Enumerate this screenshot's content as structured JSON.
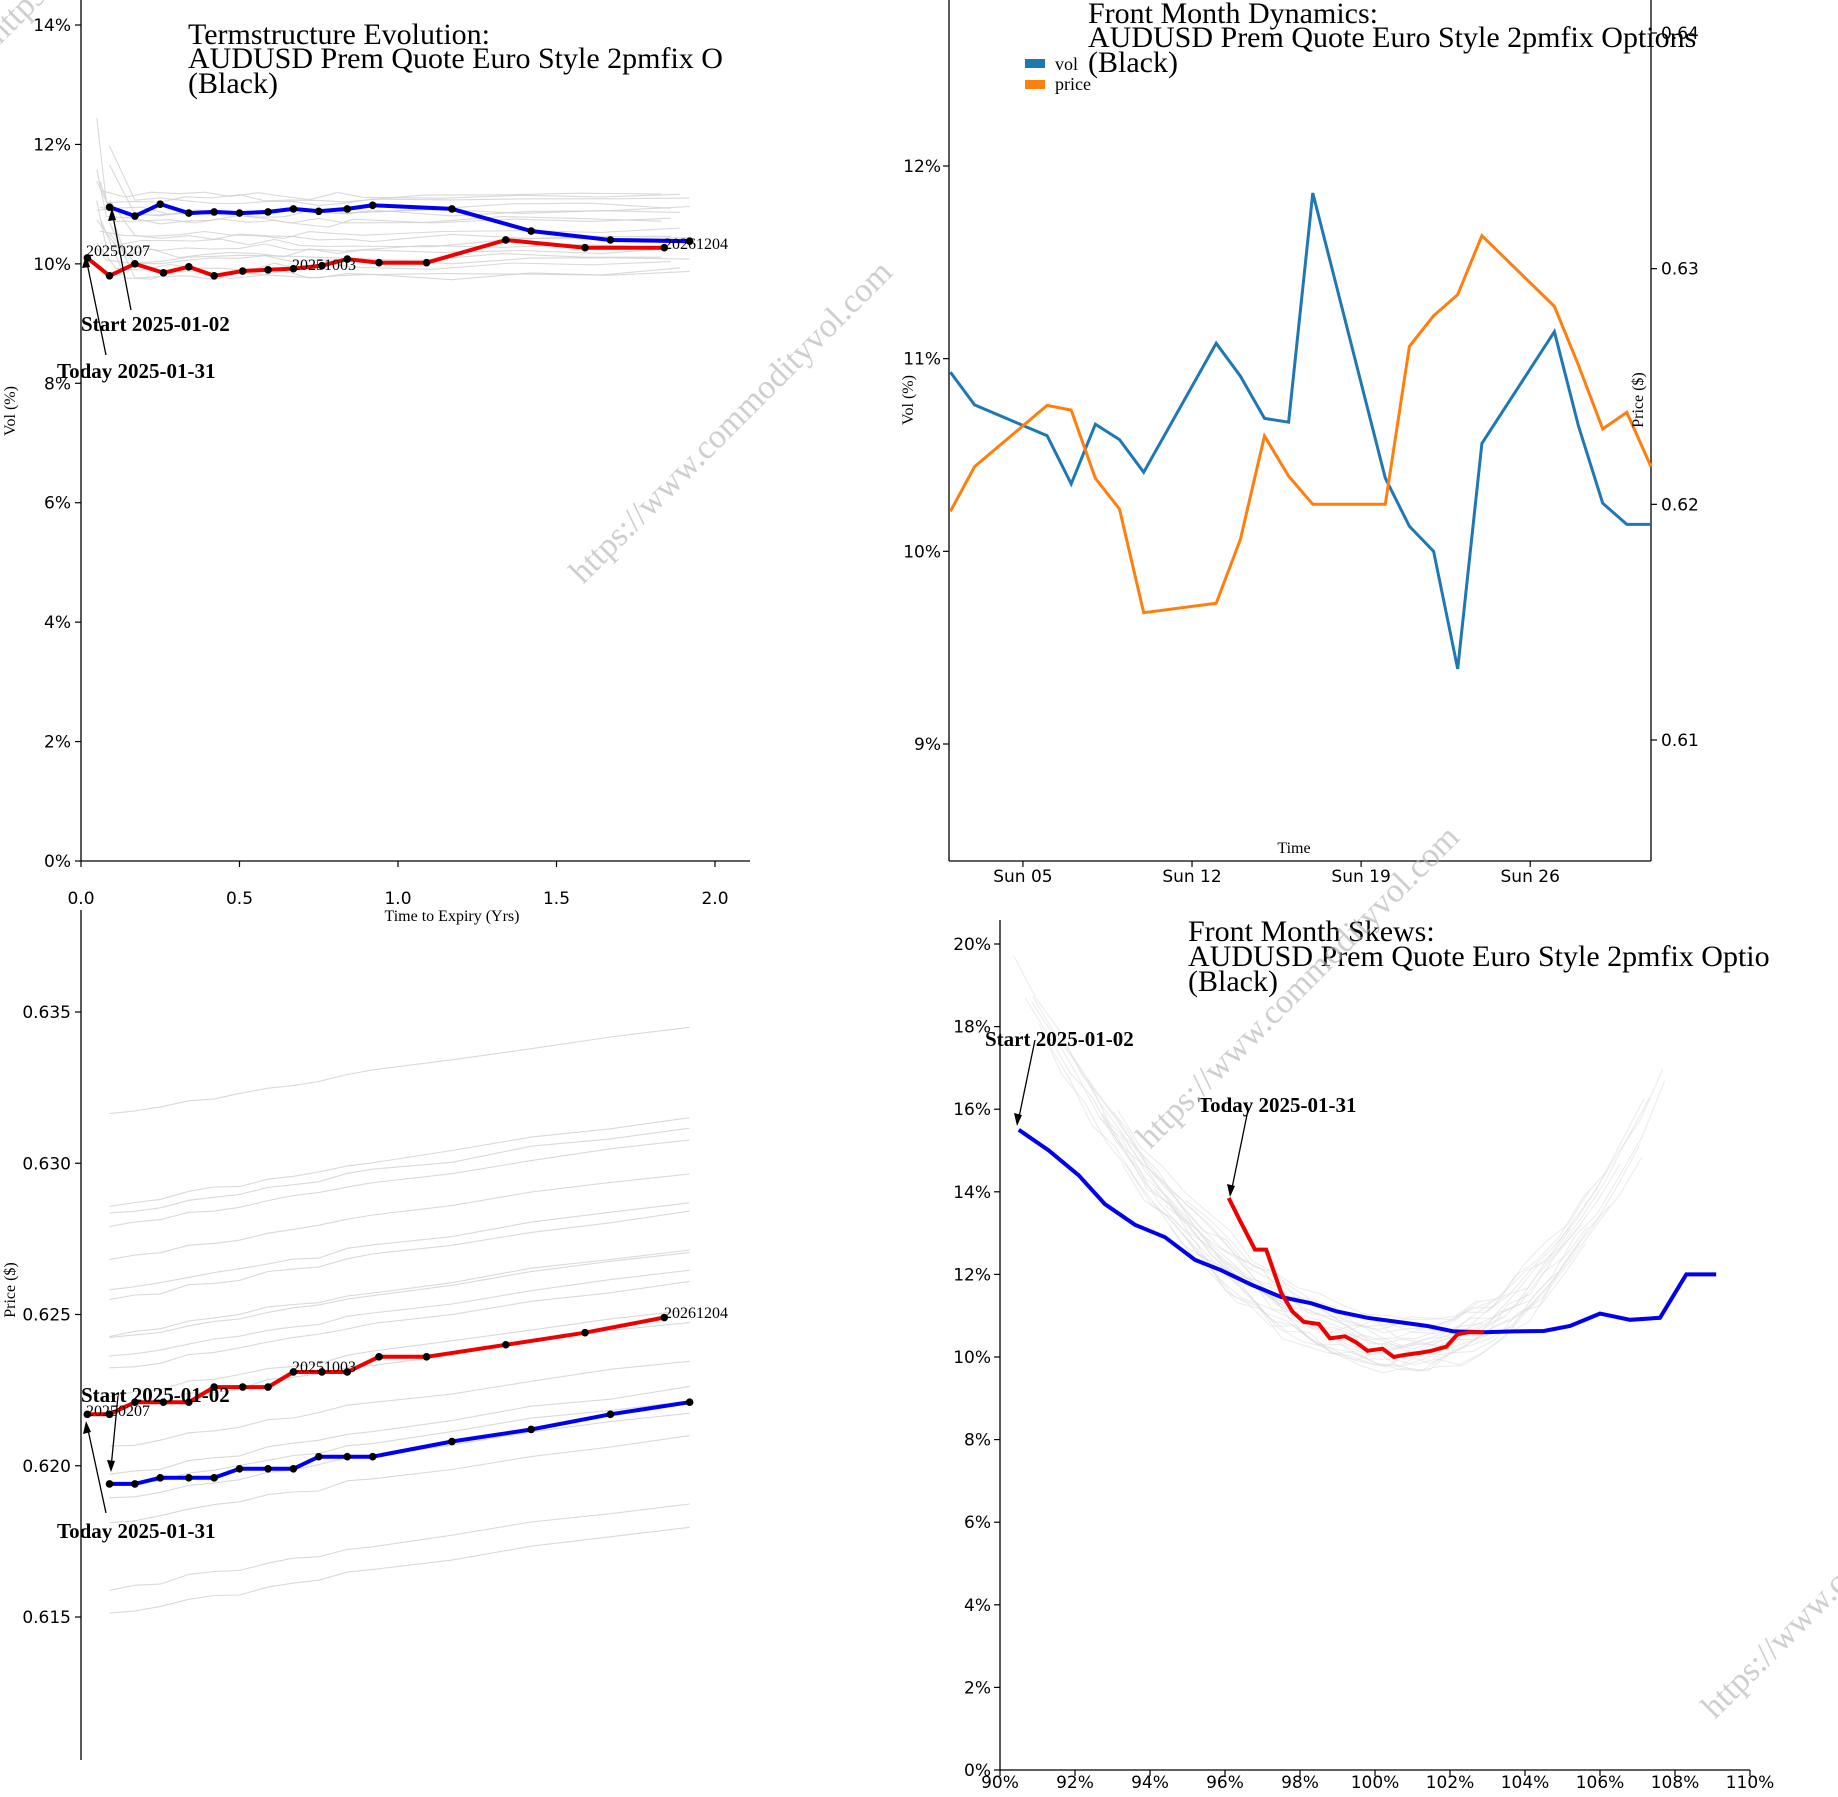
{
  "watermark": "https://www.commodityvol.com",
  "charts": {
    "term_vol": {
      "title_lines": [
        "Termstructure Evolution:",
        "AUDUSD Prem Quote Euro Style 2pmfix O",
        "(Black)"
      ],
      "xlabel": "Time to Expiry (Yrs)",
      "ylabel": "Vol (%)",
      "x_ticks": [
        "0.0",
        "0.5",
        "1.0",
        "1.5",
        "2.0"
      ],
      "y_ticks": [
        "0%",
        "2%",
        "4%",
        "6%",
        "8%",
        "10%",
        "12%",
        "14%"
      ],
      "annotations": {
        "start": "Start 2025-01-02",
        "today": "Today 2025-01-31"
      },
      "point_labels": [
        "20250207",
        "20251003",
        "20261204"
      ]
    },
    "term_price": {
      "ylabel": "Price ($)",
      "y_ticks": [
        "0.615",
        "0.620",
        "0.625",
        "0.630",
        "0.635"
      ],
      "annotations": {
        "start": "Start 2025-01-02",
        "today": "Today 2025-01-31"
      },
      "point_labels": [
        "20250207",
        "20251003",
        "20261204"
      ]
    },
    "dynamics": {
      "title_lines": [
        "Front Month Dynamics:",
        "AUDUSD Prem Quote Euro Style 2pmfix Options",
        "(Black)"
      ],
      "xlabel": "Time",
      "ylabel_left": "Vol (%)",
      "ylabel_right": "Price ($)",
      "x_ticks": [
        "Sun 05",
        "Sun 12",
        "Sun 19",
        "Sun 26"
      ],
      "y_ticks_left": [
        "9%",
        "10%",
        "11%",
        "12%"
      ],
      "y_ticks_right": [
        "0.61",
        "0.62",
        "0.63",
        "0.64"
      ],
      "legend": [
        "vol",
        "price"
      ]
    },
    "skew": {
      "title_lines": [
        "Front Month Skews:",
        "AUDUSD Prem Quote Euro Style 2pmfix Optio",
        "(Black)"
      ],
      "x_ticks": [
        "90%",
        "92%",
        "94%",
        "96%",
        "98%",
        "100%",
        "102%",
        "104%",
        "106%",
        "108%",
        "110%"
      ],
      "y_ticks": [
        "0%",
        "2%",
        "4%",
        "6%",
        "8%",
        "10%",
        "12%",
        "14%",
        "16%",
        "18%",
        "20%"
      ],
      "annotations": {
        "start": "Start 2025-01-02",
        "today": "Today 2025-01-31"
      }
    }
  },
  "colors": {
    "start": "#0000ee",
    "today": "#ee0000",
    "vol": "#1f77b4",
    "price": "#ff7f0e",
    "history": "#cccccc"
  },
  "chart_data": [
    {
      "type": "line",
      "title": "Termstructure Evolution: AUDUSD Prem Quote Euro Style 2pmfix O (Black)",
      "xlabel": "Time to Expiry (Yrs)",
      "ylabel": "Vol (%)",
      "xlim": [
        0,
        2.1
      ],
      "ylim": [
        0,
        14
      ],
      "series": [
        {
          "name": "Start 2025-01-02",
          "x": [
            0.09,
            0.17,
            0.25,
            0.34,
            0.42,
            0.5,
            0.59,
            0.67,
            0.75,
            0.84,
            0.92,
            1.17,
            1.42,
            1.67,
            1.92
          ],
          "values": [
            10.95,
            10.8,
            11.0,
            10.85,
            10.87,
            10.85,
            10.87,
            10.92,
            10.88,
            10.92,
            10.98,
            10.92,
            10.55,
            10.4,
            10.38
          ]
        },
        {
          "name": "Today 2025-01-31",
          "x": [
            0.02,
            0.09,
            0.17,
            0.26,
            0.34,
            0.42,
            0.51,
            0.59,
            0.67,
            0.76,
            0.84,
            0.94,
            1.09,
            1.34,
            1.59,
            1.84
          ],
          "values": [
            10.1,
            9.8,
            10.0,
            9.85,
            9.95,
            9.8,
            9.88,
            9.9,
            9.92,
            9.97,
            10.08,
            10.02,
            10.02,
            10.4,
            10.27,
            10.27
          ]
        }
      ]
    },
    {
      "type": "line",
      "title": "",
      "xlabel": "Time to Expiry (Yrs)",
      "ylabel": "Price ($)",
      "xlim": [
        0,
        2.1
      ],
      "ylim": [
        0.61,
        0.6395
      ],
      "series": [
        {
          "name": "Start 2025-01-02",
          "x": [
            0.09,
            0.17,
            0.25,
            0.34,
            0.42,
            0.5,
            0.59,
            0.67,
            0.75,
            0.84,
            0.92,
            1.17,
            1.42,
            1.67,
            1.92
          ],
          "values": [
            0.6194,
            0.6194,
            0.6196,
            0.6196,
            0.6196,
            0.6199,
            0.6199,
            0.6199,
            0.6203,
            0.6203,
            0.6203,
            0.6208,
            0.6212,
            0.6217,
            0.6221
          ]
        },
        {
          "name": "Today 2025-01-31",
          "x": [
            0.02,
            0.09,
            0.17,
            0.26,
            0.34,
            0.42,
            0.51,
            0.59,
            0.67,
            0.76,
            0.84,
            0.94,
            1.09,
            1.34,
            1.59,
            1.84
          ],
          "values": [
            0.6217,
            0.6217,
            0.6221,
            0.6221,
            0.6221,
            0.6226,
            0.6226,
            0.6226,
            0.6231,
            0.6231,
            0.6231,
            0.6236,
            0.6236,
            0.624,
            0.6244,
            0.6249
          ]
        }
      ]
    },
    {
      "type": "line",
      "title": "Front Month Dynamics: AUDUSD Prem Quote Euro Style 2pmfix Options (Black)",
      "xlabel": "Time",
      "ylabel": "Vol (%)",
      "ylabel_right": "Price ($)",
      "x": [
        "2025-01-02",
        "2025-01-03",
        "2025-01-06",
        "2025-01-07",
        "2025-01-08",
        "2025-01-09",
        "2025-01-10",
        "2025-01-13",
        "2025-01-14",
        "2025-01-15",
        "2025-01-16",
        "2025-01-17",
        "2025-01-20",
        "2025-01-21",
        "2025-01-22",
        "2025-01-23",
        "2025-01-24",
        "2025-01-27",
        "2025-01-28",
        "2025-01-29",
        "2025-01-30",
        "2025-01-31"
      ],
      "xlim": [
        "2025-01-02",
        "2025-01-31"
      ],
      "ylim": [
        8.45,
        12.93
      ],
      "ylim_right": [
        0.6049,
        0.6349
      ],
      "series": [
        {
          "name": "vol",
          "axis": "left",
          "values": [
            10.93,
            10.76,
            10.6,
            10.35,
            10.66,
            10.58,
            10.41,
            11.08,
            10.91,
            10.69,
            10.67,
            11.86,
            10.38,
            10.13,
            10.0,
            9.39,
            10.56,
            11.14,
            10.65,
            10.25,
            10.14,
            10.14
          ]
        },
        {
          "name": "price",
          "axis": "right",
          "values": [
            0.6197,
            0.6216,
            0.6242,
            0.624,
            0.6211,
            0.6198,
            0.6154,
            0.6158,
            0.6185,
            0.6229,
            0.6212,
            0.62,
            0.62,
            0.6267,
            0.628,
            0.6289,
            0.6314,
            0.6284,
            0.6259,
            0.6232,
            0.6239,
            0.6216
          ]
        }
      ]
    },
    {
      "type": "line",
      "title": "Front Month Skews: AUDUSD Prem Quote Euro Style 2pmfix Optio (Black)",
      "xlabel": "",
      "ylabel": "",
      "xlim": [
        90,
        110
      ],
      "ylim": [
        0,
        20.5
      ],
      "series": [
        {
          "name": "Start 2025-01-02",
          "x": [
            90.5,
            91.3,
            92.1,
            92.8,
            93.6,
            94.4,
            95.2,
            95.9,
            96.7,
            97.5,
            98.3,
            99.0,
            99.8,
            100.6,
            101.4,
            102.1,
            102.9,
            103.7,
            104.5,
            105.2,
            106.0,
            106.8,
            107.6,
            108.3,
            109.1
          ],
          "values": [
            15.5,
            15.0,
            14.4,
            13.7,
            13.2,
            12.9,
            12.35,
            12.1,
            11.75,
            11.45,
            11.3,
            11.1,
            10.95,
            10.85,
            10.75,
            10.62,
            10.6,
            10.62,
            10.63,
            10.75,
            11.05,
            10.9,
            10.95,
            12.0,
            12.0
          ]
        },
        {
          "name": "Today 2025-01-31",
          "x": [
            96.1,
            96.4,
            96.8,
            97.1,
            97.5,
            97.8,
            98.1,
            98.5,
            98.8,
            99.2,
            99.5,
            99.8,
            100.2,
            100.5,
            100.8,
            101.2,
            101.5,
            101.9,
            102.2,
            102.5,
            102.9
          ],
          "values": [
            13.85,
            13.3,
            12.6,
            12.6,
            11.55,
            11.1,
            10.85,
            10.8,
            10.45,
            10.5,
            10.35,
            10.15,
            10.2,
            10.0,
            10.05,
            10.1,
            10.15,
            10.25,
            10.55,
            10.6,
            10.6
          ]
        }
      ]
    }
  ]
}
